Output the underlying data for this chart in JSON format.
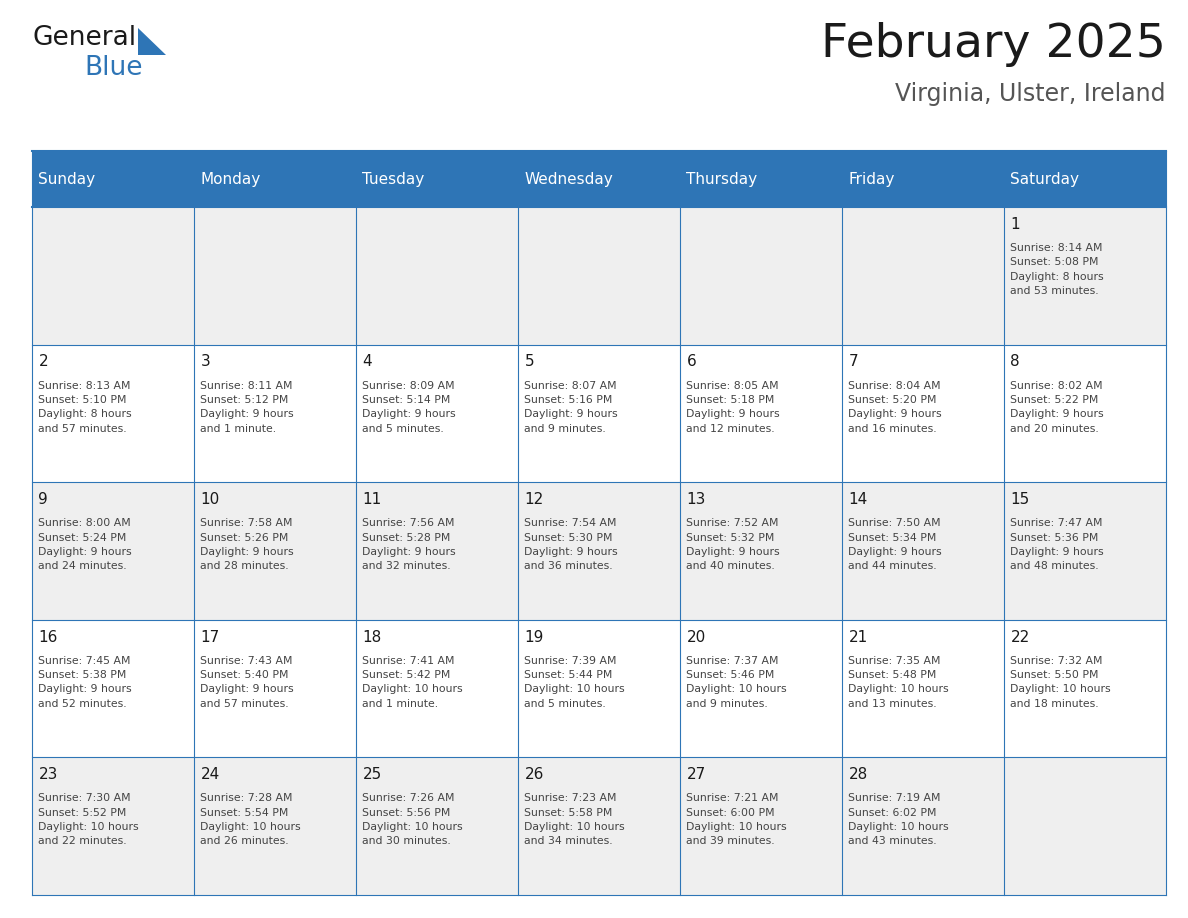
{
  "title": "February 2025",
  "subtitle": "Virginia, Ulster, Ireland",
  "header_bg": "#2E75B6",
  "header_text_color": "#FFFFFF",
  "cell_bg_white": "#FFFFFF",
  "cell_bg_light": "#EFEFEF",
  "border_color": "#2E75B6",
  "day_headers": [
    "Sunday",
    "Monday",
    "Tuesday",
    "Wednesday",
    "Thursday",
    "Friday",
    "Saturday"
  ],
  "weeks": [
    [
      {
        "day": "",
        "info": ""
      },
      {
        "day": "",
        "info": ""
      },
      {
        "day": "",
        "info": ""
      },
      {
        "day": "",
        "info": ""
      },
      {
        "day": "",
        "info": ""
      },
      {
        "day": "",
        "info": ""
      },
      {
        "day": "1",
        "info": "Sunrise: 8:14 AM\nSunset: 5:08 PM\nDaylight: 8 hours\nand 53 minutes."
      }
    ],
    [
      {
        "day": "2",
        "info": "Sunrise: 8:13 AM\nSunset: 5:10 PM\nDaylight: 8 hours\nand 57 minutes."
      },
      {
        "day": "3",
        "info": "Sunrise: 8:11 AM\nSunset: 5:12 PM\nDaylight: 9 hours\nand 1 minute."
      },
      {
        "day": "4",
        "info": "Sunrise: 8:09 AM\nSunset: 5:14 PM\nDaylight: 9 hours\nand 5 minutes."
      },
      {
        "day": "5",
        "info": "Sunrise: 8:07 AM\nSunset: 5:16 PM\nDaylight: 9 hours\nand 9 minutes."
      },
      {
        "day": "6",
        "info": "Sunrise: 8:05 AM\nSunset: 5:18 PM\nDaylight: 9 hours\nand 12 minutes."
      },
      {
        "day": "7",
        "info": "Sunrise: 8:04 AM\nSunset: 5:20 PM\nDaylight: 9 hours\nand 16 minutes."
      },
      {
        "day": "8",
        "info": "Sunrise: 8:02 AM\nSunset: 5:22 PM\nDaylight: 9 hours\nand 20 minutes."
      }
    ],
    [
      {
        "day": "9",
        "info": "Sunrise: 8:00 AM\nSunset: 5:24 PM\nDaylight: 9 hours\nand 24 minutes."
      },
      {
        "day": "10",
        "info": "Sunrise: 7:58 AM\nSunset: 5:26 PM\nDaylight: 9 hours\nand 28 minutes."
      },
      {
        "day": "11",
        "info": "Sunrise: 7:56 AM\nSunset: 5:28 PM\nDaylight: 9 hours\nand 32 minutes."
      },
      {
        "day": "12",
        "info": "Sunrise: 7:54 AM\nSunset: 5:30 PM\nDaylight: 9 hours\nand 36 minutes."
      },
      {
        "day": "13",
        "info": "Sunrise: 7:52 AM\nSunset: 5:32 PM\nDaylight: 9 hours\nand 40 minutes."
      },
      {
        "day": "14",
        "info": "Sunrise: 7:50 AM\nSunset: 5:34 PM\nDaylight: 9 hours\nand 44 minutes."
      },
      {
        "day": "15",
        "info": "Sunrise: 7:47 AM\nSunset: 5:36 PM\nDaylight: 9 hours\nand 48 minutes."
      }
    ],
    [
      {
        "day": "16",
        "info": "Sunrise: 7:45 AM\nSunset: 5:38 PM\nDaylight: 9 hours\nand 52 minutes."
      },
      {
        "day": "17",
        "info": "Sunrise: 7:43 AM\nSunset: 5:40 PM\nDaylight: 9 hours\nand 57 minutes."
      },
      {
        "day": "18",
        "info": "Sunrise: 7:41 AM\nSunset: 5:42 PM\nDaylight: 10 hours\nand 1 minute."
      },
      {
        "day": "19",
        "info": "Sunrise: 7:39 AM\nSunset: 5:44 PM\nDaylight: 10 hours\nand 5 minutes."
      },
      {
        "day": "20",
        "info": "Sunrise: 7:37 AM\nSunset: 5:46 PM\nDaylight: 10 hours\nand 9 minutes."
      },
      {
        "day": "21",
        "info": "Sunrise: 7:35 AM\nSunset: 5:48 PM\nDaylight: 10 hours\nand 13 minutes."
      },
      {
        "day": "22",
        "info": "Sunrise: 7:32 AM\nSunset: 5:50 PM\nDaylight: 10 hours\nand 18 minutes."
      }
    ],
    [
      {
        "day": "23",
        "info": "Sunrise: 7:30 AM\nSunset: 5:52 PM\nDaylight: 10 hours\nand 22 minutes."
      },
      {
        "day": "24",
        "info": "Sunrise: 7:28 AM\nSunset: 5:54 PM\nDaylight: 10 hours\nand 26 minutes."
      },
      {
        "day": "25",
        "info": "Sunrise: 7:26 AM\nSunset: 5:56 PM\nDaylight: 10 hours\nand 30 minutes."
      },
      {
        "day": "26",
        "info": "Sunrise: 7:23 AM\nSunset: 5:58 PM\nDaylight: 10 hours\nand 34 minutes."
      },
      {
        "day": "27",
        "info": "Sunrise: 7:21 AM\nSunset: 6:00 PM\nDaylight: 10 hours\nand 39 minutes."
      },
      {
        "day": "28",
        "info": "Sunrise: 7:19 AM\nSunset: 6:02 PM\nDaylight: 10 hours\nand 43 minutes."
      },
      {
        "day": "",
        "info": ""
      }
    ]
  ],
  "logo_text_general": "General",
  "logo_text_blue": "Blue",
  "logo_color_general": "#1a1a1a",
  "logo_color_blue": "#2E75B6",
  "fig_width": 11.88,
  "fig_height": 9.18,
  "dpi": 100
}
